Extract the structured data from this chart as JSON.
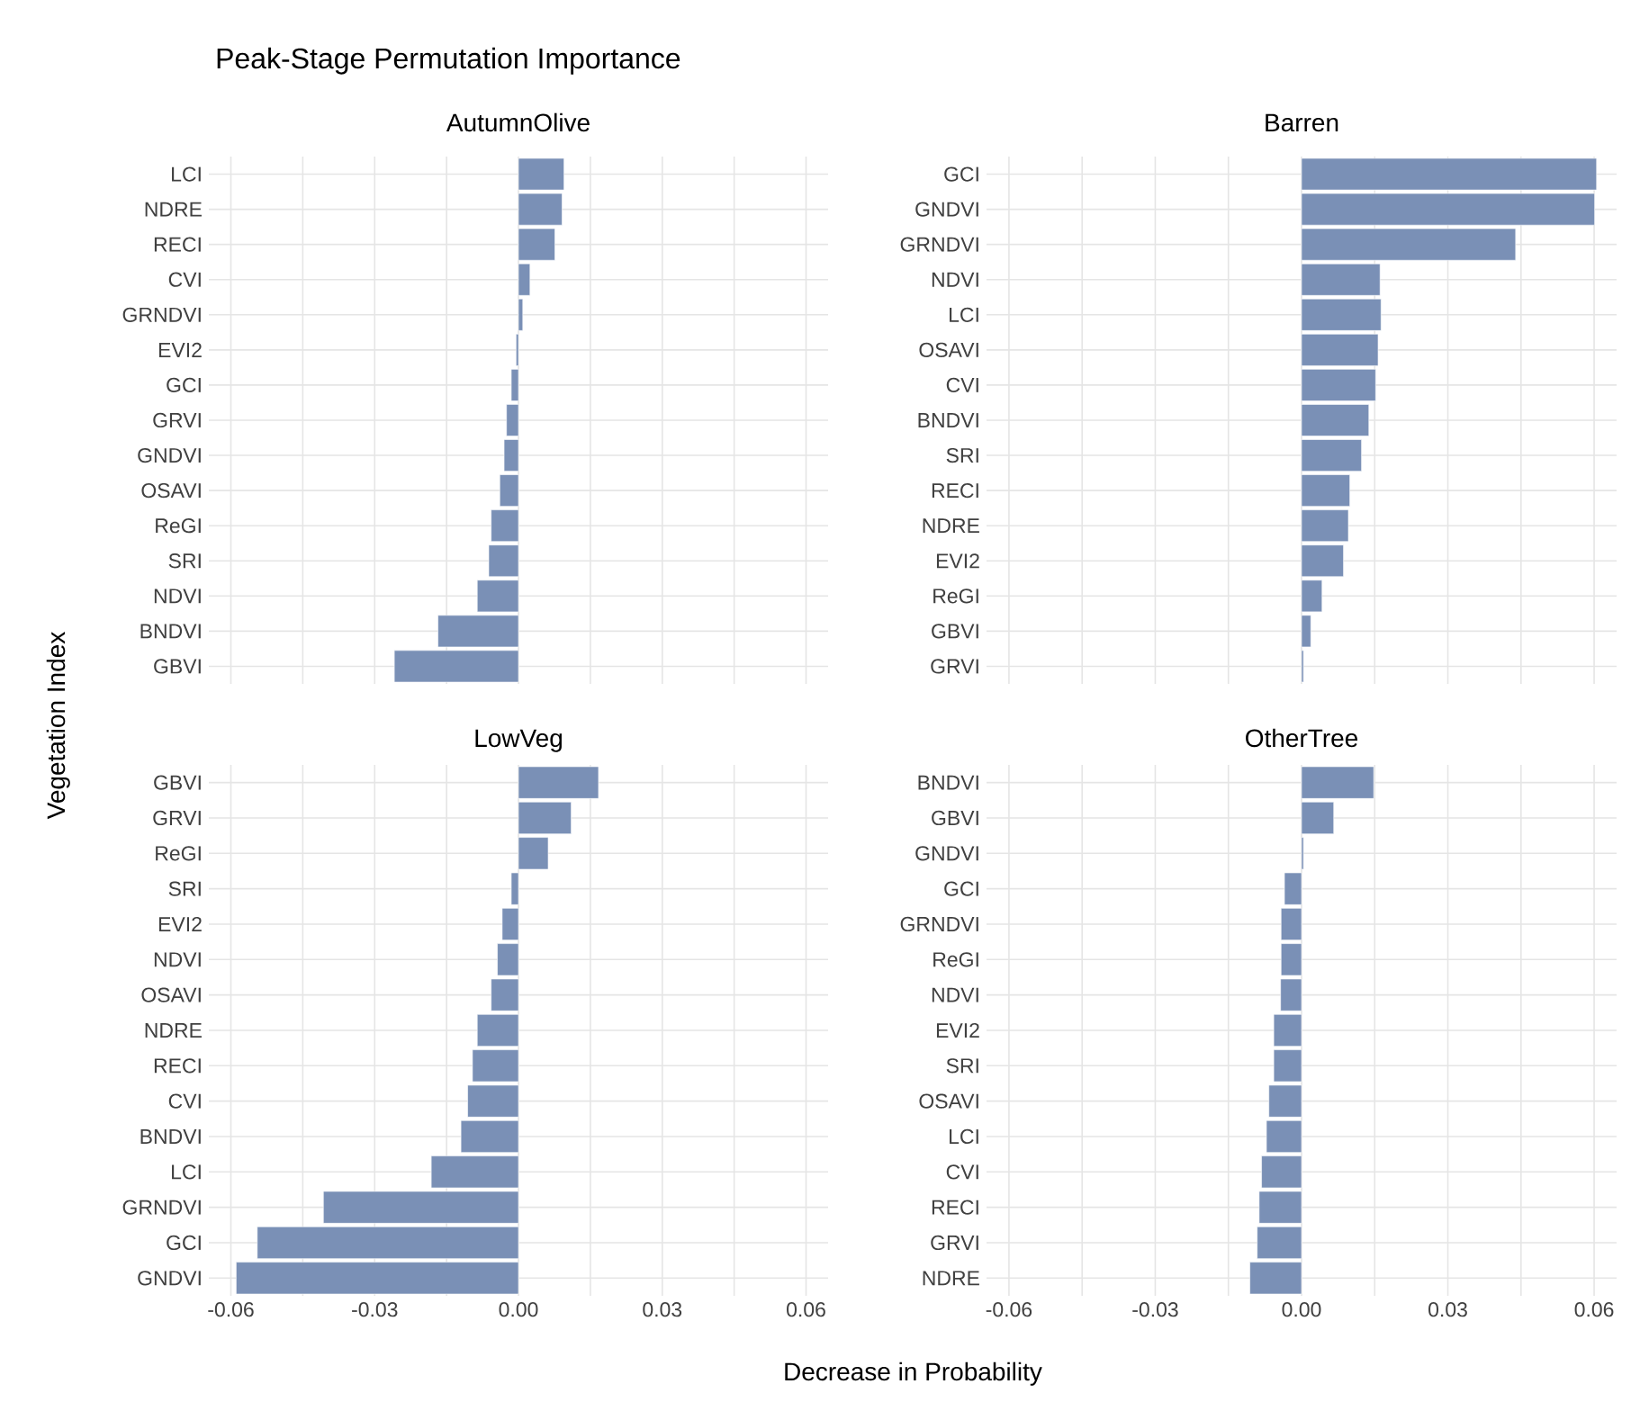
{
  "chart_data": [
    {
      "type": "bar",
      "orientation": "horizontal",
      "title": "Peak-Stage Permutation Importance",
      "subtitle": "AutumnOlive",
      "ylabel": "Vegetation Index",
      "color": "#7a90b6",
      "grid": true,
      "tick_labels": "y",
      "categories": [
        "LCI",
        "NDRE",
        "RECI",
        "CVI",
        "GRNDVI",
        "EVI2",
        "GCI",
        "GRVI",
        "GNDVI",
        "OSAVI",
        "ReGI",
        "SRI",
        "NDVI",
        "BNDVI",
        "GBVI"
      ],
      "values": [
        0.0095,
        0.0091,
        0.0076,
        0.0024,
        0.0009,
        -0.0005,
        -0.0015,
        -0.0025,
        -0.003,
        -0.0039,
        -0.0057,
        -0.0062,
        -0.0086,
        -0.0168,
        -0.0259
      ],
      "xlim": [
        -0.0646,
        0.0646
      ],
      "xticks": [
        -0.06,
        -0.03,
        0,
        0.03,
        0.06
      ]
    },
    {
      "type": "bar",
      "orientation": "horizontal",
      "subtitle": "Barren",
      "color": "#7a90b6",
      "grid": true,
      "tick_labels": "y",
      "categories": [
        "GCI",
        "GNDVI",
        "GRNDVI",
        "NDVI",
        "LCI",
        "OSAVI",
        "CVI",
        "BNDVI",
        "SRI",
        "RECI",
        "NDRE",
        "EVI2",
        "ReGI",
        "GBVI",
        "GRVI"
      ],
      "values": [
        0.0605,
        0.0601,
        0.0439,
        0.0161,
        0.0163,
        0.0157,
        0.0152,
        0.0138,
        0.0123,
        0.0099,
        0.0096,
        0.0086,
        0.0042,
        0.0019,
        0.0004
      ],
      "xlim": [
        -0.0646,
        0.0646
      ],
      "xticks": [
        -0.06,
        -0.03,
        0,
        0.03,
        0.06
      ]
    },
    {
      "type": "bar",
      "orientation": "horizontal",
      "subtitle": "LowVeg",
      "xlabel": "Decrease in Probability",
      "color": "#7a90b6",
      "grid": true,
      "categories": [
        "GBVI",
        "GRVI",
        "ReGI",
        "SRI",
        "EVI2",
        "NDVI",
        "OSAVI",
        "NDRE",
        "RECI",
        "CVI",
        "BNDVI",
        "LCI",
        "GRNDVI",
        "GCI",
        "GNDVI"
      ],
      "values": [
        0.0167,
        0.011,
        0.0062,
        -0.0015,
        -0.0034,
        -0.0044,
        -0.0057,
        -0.0086,
        -0.0096,
        -0.0106,
        -0.012,
        -0.0182,
        -0.0407,
        -0.0545,
        -0.0589
      ],
      "xlim": [
        -0.0646,
        0.0646
      ],
      "xticks": [
        -0.06,
        -0.03,
        {
          "value": 0,
          "label": "0.00"
        },
        0.03,
        0.06
      ]
    },
    {
      "type": "bar",
      "orientation": "horizontal",
      "subtitle": "OtherTree",
      "color": "#7a90b6",
      "grid": true,
      "categories": [
        "BNDVI",
        "GBVI",
        "GNDVI",
        "GCI",
        "GRNDVI",
        "ReGI",
        "NDVI",
        "EVI2",
        "SRI",
        "OSAVI",
        "LCI",
        "CVI",
        "RECI",
        "GRVI",
        "NDRE"
      ],
      "values": [
        0.0148,
        0.0066,
        0.0004,
        -0.0035,
        -0.0042,
        -0.0042,
        -0.0043,
        -0.0057,
        -0.0057,
        -0.0067,
        -0.0072,
        -0.0082,
        -0.0087,
        -0.0091,
        -0.0106
      ],
      "xlim": [
        -0.0646,
        0.0646
      ],
      "xticks": [
        -0.06,
        -0.03,
        {
          "value": 0,
          "label": "0.00"
        },
        0.03,
        0.06
      ]
    }
  ]
}
